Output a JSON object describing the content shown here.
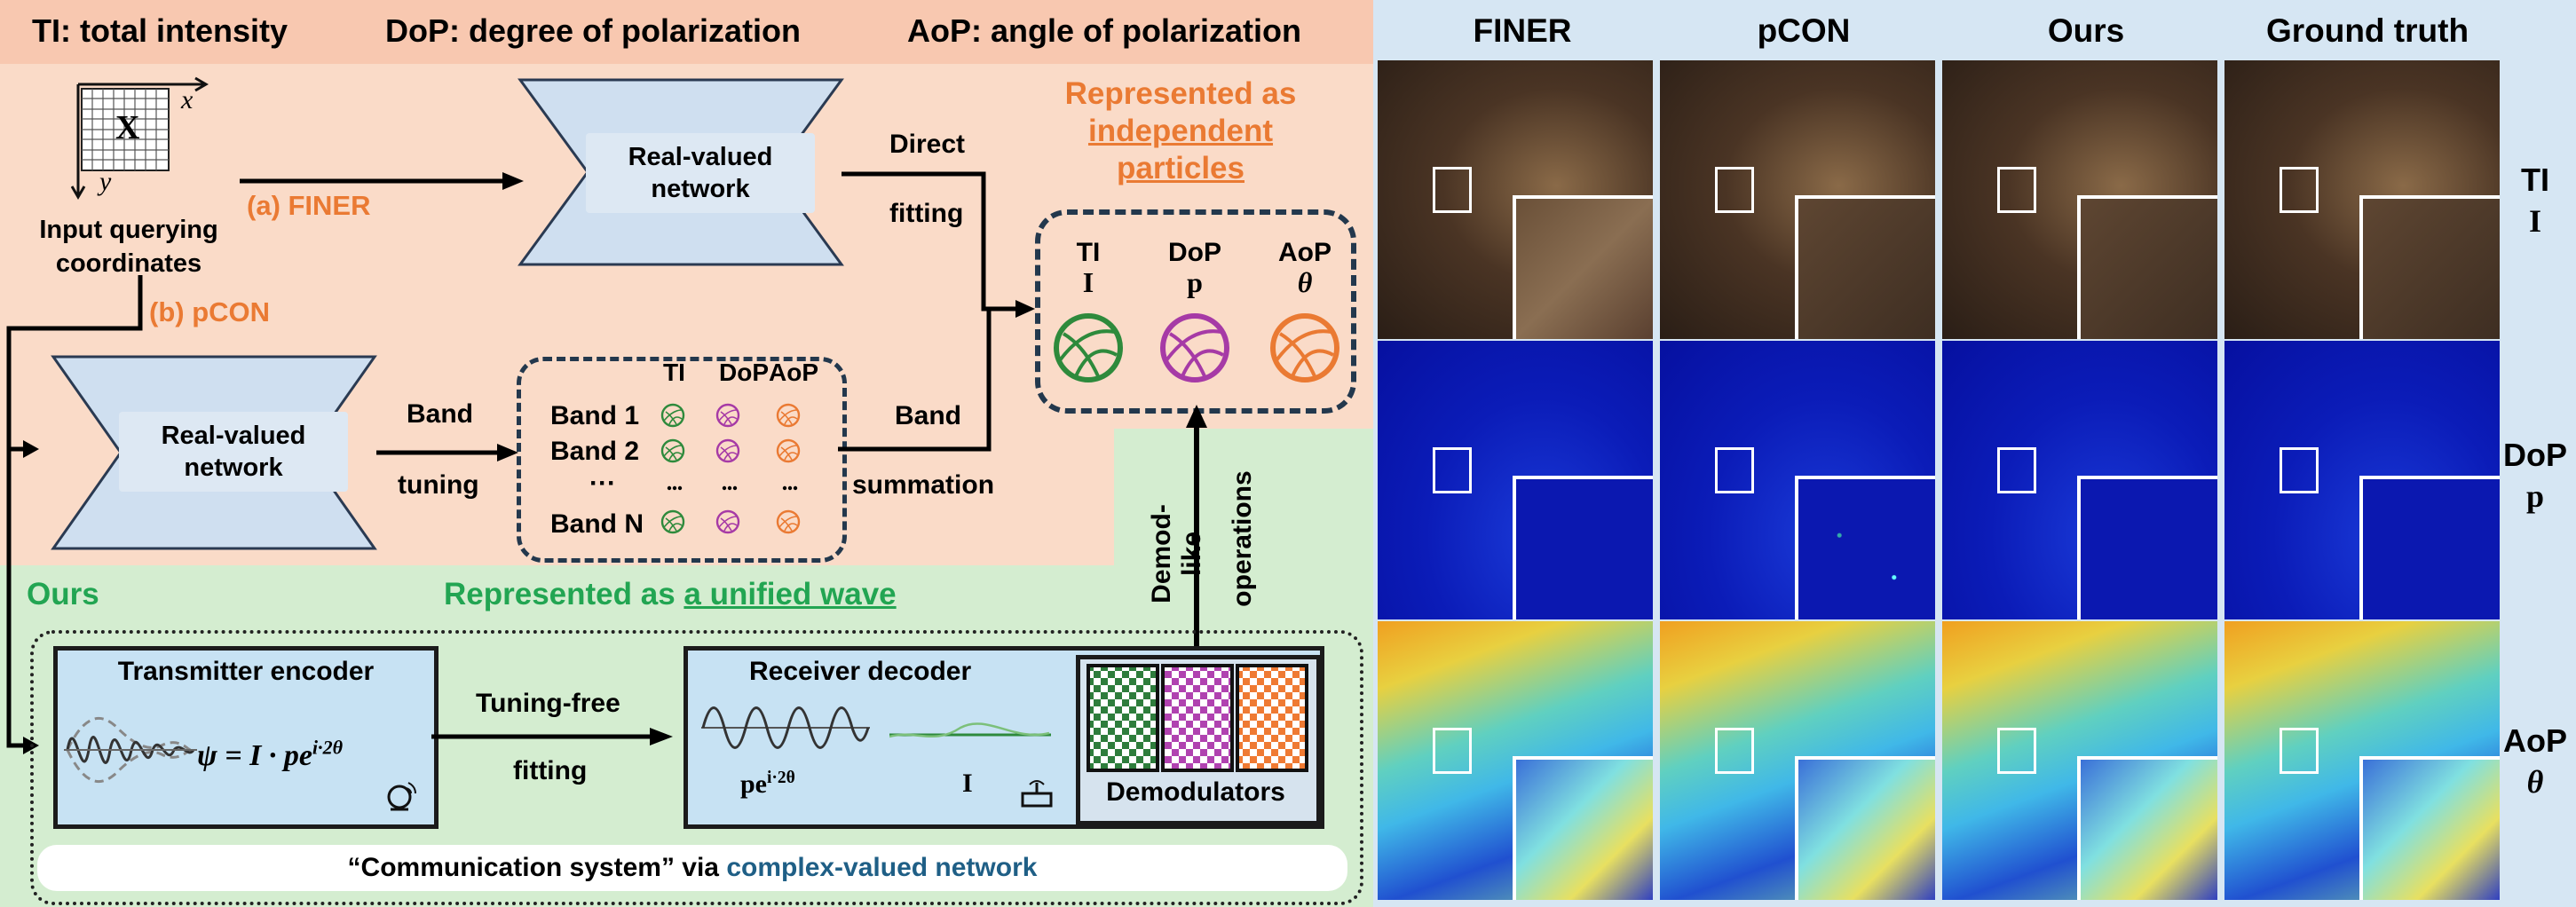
{
  "header": {
    "ti_def": "TI: total intensity",
    "dop_def": "DoP: degree of polarization",
    "aop_def": "AoP: angle of polarization"
  },
  "left": {
    "coord_x": "x",
    "coord_y": "y",
    "coord_X": "X",
    "input_label": "Input querying coordinates",
    "finer_label": "(a) FINER",
    "pcon_label": "(b) pCON",
    "net_label": "Real-valued network",
    "direct_fitting_1": "Direct",
    "direct_fitting_2": "fitting",
    "band_tuning_1": "Band",
    "band_tuning_2": "tuning",
    "band_summation_1": "Band",
    "band_summation_2": "summation",
    "independent_1": "Represented as",
    "independent_2": "independent",
    "independent_3": "particles",
    "particles": [
      {
        "name": "TI",
        "sym": "I",
        "color": "#2e8a3c"
      },
      {
        "name": "DoP",
        "sym": "p",
        "color": "#a63aa6"
      },
      {
        "name": "AoP",
        "sym": "θ",
        "color": "#ea7a33"
      }
    ],
    "bands_header": [
      "TI",
      "DoP",
      "AoP"
    ],
    "bands": [
      "Band 1",
      "Band 2",
      "···",
      "Band N"
    ],
    "ours_label": "Ours",
    "unified_prefix": "Represented as ",
    "unified_link": "a unified wave",
    "demod_1": "Demod-like",
    "demod_2": "operations",
    "transmitter_title": "Transmitter encoder",
    "transmitter_eq": "ψ = I · pe^{i·2θ}",
    "tuning_free_1": "Tuning-free",
    "tuning_free_2": "fitting",
    "receiver_title": "Receiver decoder",
    "receiver_pe": "pe^{i·2θ}",
    "receiver_I": "I",
    "demodulators": "Demodulators",
    "comm_prefix": "“Communication system” via ",
    "comm_link": "complex-valued network"
  },
  "right": {
    "columns": [
      "FINER",
      "pCON",
      "Ours",
      "Ground truth"
    ],
    "rows": [
      {
        "label": "TI",
        "sym": "I"
      },
      {
        "label": "DoP",
        "sym": "p"
      },
      {
        "label": "AoP",
        "sym": "θ"
      }
    ]
  },
  "colors": {
    "peach": "#fadbc8",
    "mint": "#d4edd0",
    "right_bg": "#d6e6f3",
    "orange": "#ea7a33",
    "green": "#22a552",
    "dark_blue": "#1f5f86"
  }
}
